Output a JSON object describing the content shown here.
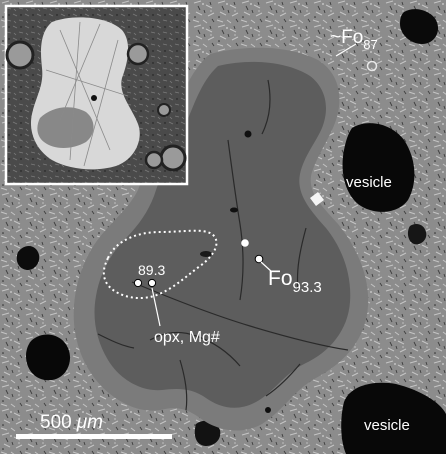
{
  "figure": {
    "labels": {
      "fo87_prefix": "~Fo",
      "fo87_sub": "87",
      "vesicle_upper": "vesicle",
      "vesicle_lower": "vesicle",
      "opx_value": "89.3",
      "fo93_main": "Fo",
      "fo93_sub": "93.3",
      "opx_caption": "opx, Mg#",
      "scale_value": "500",
      "scale_unit": "μm"
    },
    "colors": {
      "matrix": "#8a8a8a",
      "olivine_rim": "#7d7d7d",
      "olivine_core": "#5e5e5e",
      "vesicle": "#080808",
      "annotation": "#ffffff"
    }
  }
}
